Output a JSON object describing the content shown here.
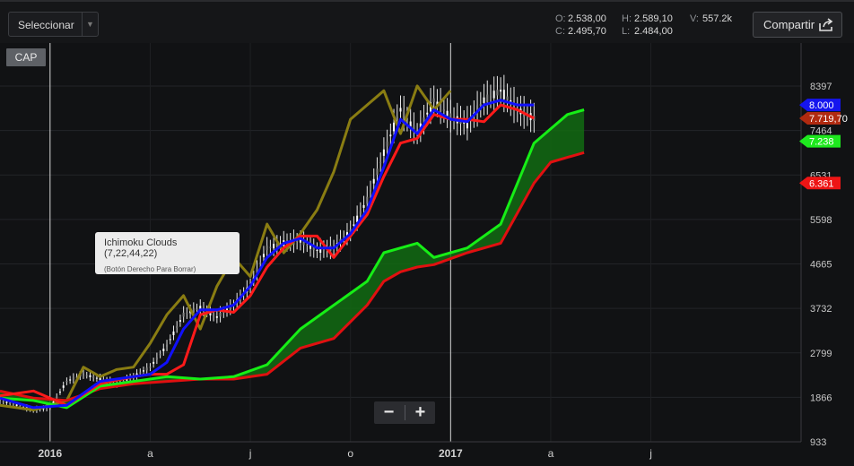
{
  "toolbar": {
    "select_label": "Seleccionar",
    "share_label": "Compartir",
    "ohlc": {
      "o_label": "O:",
      "o": "2.538,00",
      "h_label": "H:",
      "h": "2.589,10",
      "v_label": "V:",
      "v": "557.2k",
      "c_label": "C:",
      "c": "2.495,70",
      "l_label": "L:",
      "l": "2.484,00"
    }
  },
  "cap_label": "CAP",
  "tooltip": {
    "title": "Ichimoku Clouds (7,22,44,22)",
    "hint": "(Botón Derecho Para Borrar)"
  },
  "zoom": {
    "minus": "−",
    "plus": "+"
  },
  "colors": {
    "background": "#111214",
    "candle": "#e8e8e8",
    "conversion_line": "#1010ff",
    "base_line": "#ff1a1a",
    "lagging_span": "#8a7d12",
    "span_a": "#16ee16",
    "span_b": "#e01010",
    "cloud": "#126b12"
  },
  "chart_data": {
    "type": "line",
    "indicator": "Ichimoku Clouds (7,22,44,22)",
    "x_ticks": [
      "2016",
      "a",
      "j",
      "o",
      "2017",
      "a",
      "j"
    ],
    "y_ticks": [
      933,
      1866,
      2799,
      3732,
      4665,
      5598,
      6531,
      7464,
      8397
    ],
    "y_range": [
      933,
      9300
    ],
    "grid": true,
    "markers": [
      {
        "label": "8.000",
        "value": 8000,
        "color": "#1515ee"
      },
      {
        "label": "7.719,70",
        "value": 7719.7,
        "color": "#b02a10"
      },
      {
        "label": "7.238",
        "value": 7238,
        "color": "#1ee81e"
      },
      {
        "label": "6.361",
        "value": 6361,
        "color": "#ee1515"
      }
    ],
    "series": [
      {
        "key": "price",
        "x": [
          0,
          5,
          10,
          15,
          20,
          25,
          30,
          35,
          40,
          45,
          50,
          55,
          60,
          65,
          70,
          75,
          80,
          85,
          90,
          95,
          100,
          105,
          110,
          115,
          120,
          125,
          130,
          135,
          140,
          145,
          150,
          155,
          160
        ],
        "y": [
          1800,
          1700,
          1600,
          1650,
          2200,
          2350,
          2250,
          2150,
          2300,
          2500,
          2950,
          3600,
          3750,
          3550,
          3800,
          4200,
          5000,
          5100,
          5150,
          4950,
          5000,
          5350,
          6000,
          7000,
          7900,
          7400,
          8100,
          7750,
          7600,
          8100,
          8300,
          7900,
          7720
        ]
      },
      {
        "key": "conversion_line",
        "x": [
          0,
          10,
          20,
          30,
          40,
          45,
          50,
          55,
          60,
          65,
          70,
          75,
          80,
          85,
          90,
          95,
          100,
          105,
          110,
          115,
          120,
          125,
          130,
          135,
          140,
          145,
          150,
          155,
          160
        ],
        "y": [
          1850,
          1650,
          1700,
          2200,
          2300,
          2350,
          2600,
          3300,
          3700,
          3700,
          3800,
          4200,
          4800,
          5100,
          5200,
          5000,
          5000,
          5300,
          5800,
          6700,
          7700,
          7400,
          7900,
          7700,
          7650,
          8000,
          8100,
          8000,
          8000
        ]
      },
      {
        "key": "base_line",
        "x": [
          0,
          10,
          20,
          30,
          40,
          45,
          50,
          55,
          60,
          65,
          70,
          75,
          80,
          85,
          90,
          95,
          100,
          105,
          110,
          115,
          120,
          125,
          130,
          135,
          140,
          145,
          150,
          155,
          160
        ],
        "y": [
          1900,
          2000,
          1700,
          2150,
          2300,
          2350,
          2350,
          2550,
          3600,
          3700,
          3650,
          4000,
          4600,
          5000,
          5250,
          5250,
          4800,
          5250,
          5700,
          6500,
          7200,
          7300,
          7800,
          7700,
          7700,
          7650,
          8000,
          7900,
          7720
        ]
      },
      {
        "key": "lagging_span",
        "x": [
          0,
          10,
          20,
          25,
          30,
          35,
          40,
          45,
          50,
          55,
          60,
          65,
          70,
          75,
          80,
          85,
          90,
          95,
          100,
          105,
          110,
          115,
          120,
          125,
          130,
          135
        ],
        "y": [
          1700,
          1600,
          1800,
          2500,
          2300,
          2450,
          2500,
          3000,
          3600,
          4000,
          3300,
          4200,
          4800,
          4400,
          5500,
          4900,
          5300,
          5800,
          6600,
          7700,
          8000,
          8300,
          7400,
          8400,
          7900,
          8300
        ]
      },
      {
        "key": "span_a",
        "x": [
          0,
          10,
          20,
          30,
          40,
          50,
          60,
          70,
          80,
          90,
          100,
          110,
          115,
          120,
          125,
          130,
          140,
          150,
          160,
          165,
          170,
          175
        ],
        "y": [
          1850,
          1800,
          1650,
          2100,
          2200,
          2300,
          2250,
          2300,
          2550,
          3300,
          3800,
          4300,
          4900,
          5000,
          5100,
          4800,
          5000,
          5500,
          7200,
          7500,
          7800,
          7900
        ]
      },
      {
        "key": "span_b",
        "x": [
          0,
          10,
          20,
          30,
          40,
          50,
          60,
          70,
          80,
          90,
          100,
          110,
          115,
          120,
          125,
          130,
          140,
          150,
          160,
          165,
          170,
          175
        ],
        "y": [
          2000,
          1850,
          1800,
          2050,
          2150,
          2200,
          2250,
          2250,
          2350,
          2900,
          3100,
          3800,
          4300,
          4500,
          4600,
          4650,
          4900,
          5100,
          6361,
          6800,
          6900,
          7000
        ]
      }
    ]
  }
}
